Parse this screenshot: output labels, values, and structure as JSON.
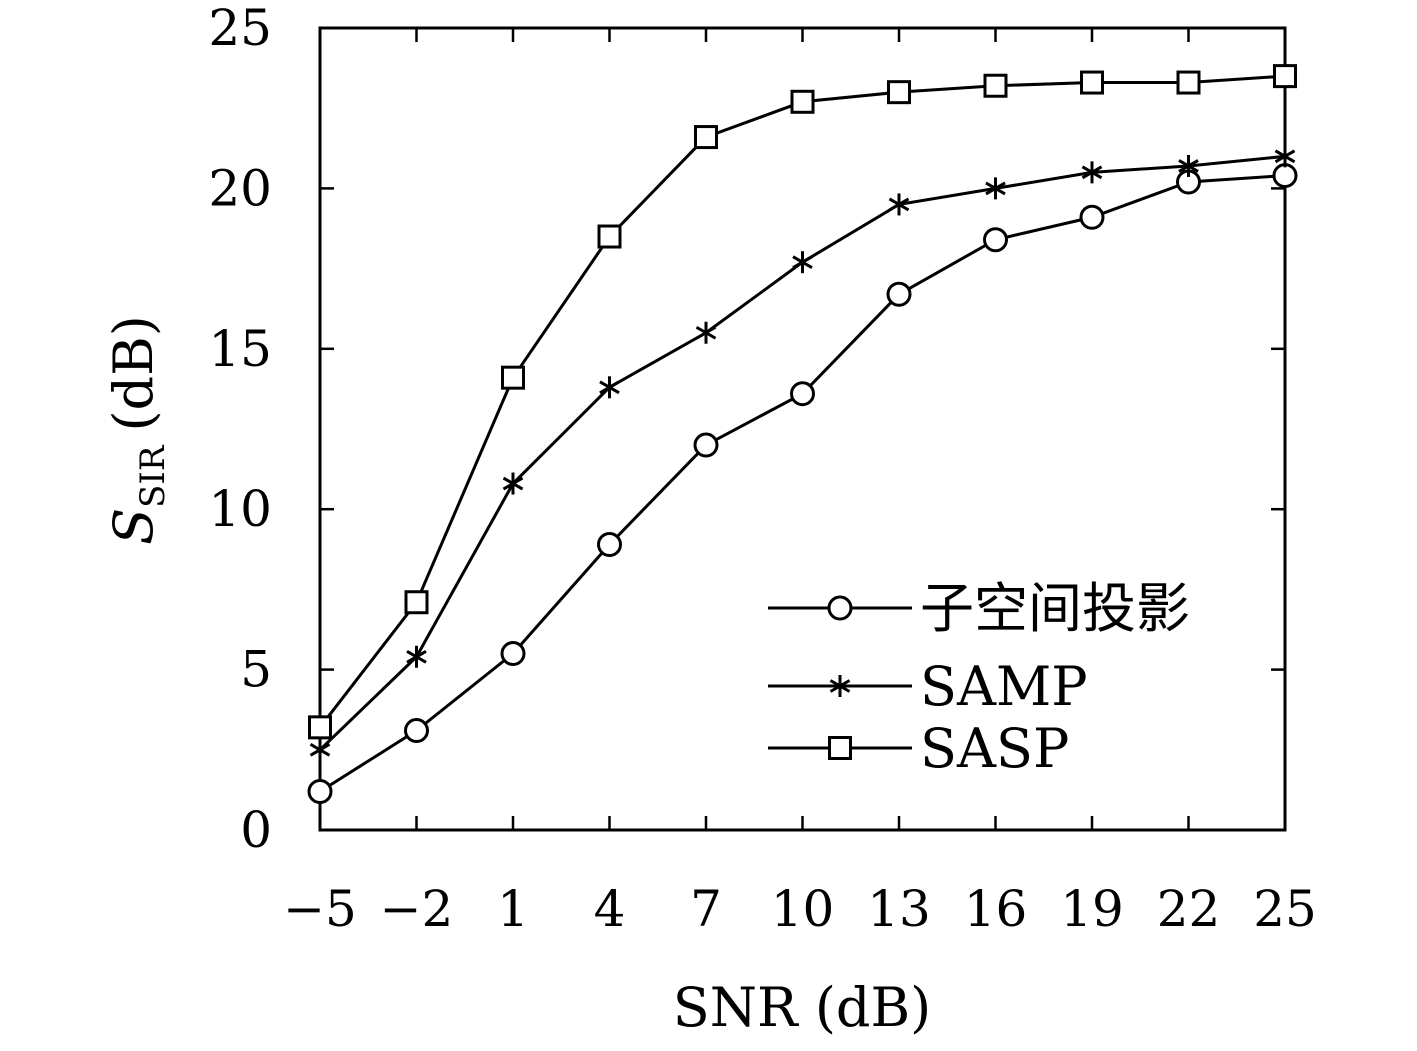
{
  "chart_data": {
    "type": "line",
    "xlabel": "SNR (dB)",
    "ylabel_main": "S",
    "ylabel_sub": "SIR",
    "ylabel_unit": "(dB)",
    "x": [
      -5,
      -2,
      1,
      4,
      7,
      10,
      13,
      16,
      19,
      22,
      25
    ],
    "x_tick_labels": [
      "−5",
      "−2",
      "1",
      "4",
      "7",
      "10",
      "13",
      "16",
      "19",
      "22",
      "25"
    ],
    "xlim": [
      -5,
      25
    ],
    "ylim": [
      0,
      25
    ],
    "y_ticks": [
      0,
      5,
      10,
      15,
      20,
      25
    ],
    "y_tick_labels": [
      "0",
      "5",
      "10",
      "15",
      "20",
      "25"
    ],
    "grid": false,
    "legend_position": "lower-right",
    "series": [
      {
        "name": "子空间投影",
        "marker": "circle",
        "values": [
          1.2,
          3.1,
          5.5,
          8.9,
          12.0,
          13.6,
          16.7,
          18.4,
          19.1,
          20.2,
          20.4
        ]
      },
      {
        "name": "SAMP",
        "marker": "star",
        "values": [
          2.5,
          5.4,
          10.8,
          13.8,
          15.5,
          17.7,
          19.5,
          20.0,
          20.5,
          20.7,
          21.0
        ]
      },
      {
        "name": "SASP",
        "marker": "square",
        "values": [
          3.2,
          7.1,
          14.1,
          18.5,
          21.6,
          22.7,
          23.0,
          23.2,
          23.3,
          23.3,
          23.5
        ]
      }
    ]
  }
}
